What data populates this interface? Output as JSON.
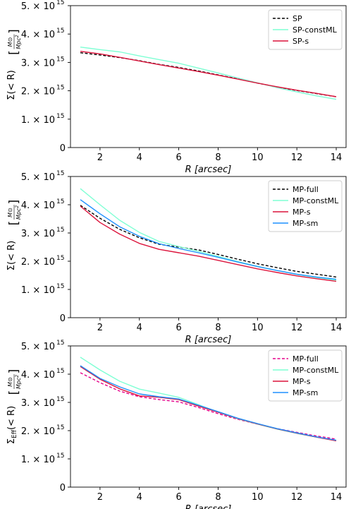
{
  "chart_data": [
    {
      "type": "line",
      "xlabel": "R [arcsec]",
      "ylabel": "Σ(< R) [M⊙ / Mpc²]",
      "ylabel_main": "Σ(< R)",
      "ylabel_unit_num": "M⊙",
      "ylabel_unit_den": "Mpc",
      "xlim": [
        0.5,
        14.5
      ],
      "ylim": [
        0,
        5000000000000000.0
      ],
      "xticks": [
        2,
        4,
        6,
        8,
        10,
        12,
        14
      ],
      "yticks": [
        0,
        1000000000000000.0,
        2000000000000000.0,
        3000000000000000.0,
        4000000000000000.0,
        5000000000000000.0
      ],
      "ytick_labels": [
        "0",
        "1. × 10",
        "2. × 10",
        "3. × 10",
        "4. × 10",
        "5. × 10"
      ],
      "ytick_exp": "15",
      "legend_position": "upper right",
      "x": [
        1,
        2,
        3,
        4,
        5,
        6,
        7,
        8,
        9,
        10,
        11,
        12,
        13,
        14
      ],
      "series": [
        {
          "name": "SP",
          "color": "#000000",
          "dash": "dashed",
          "values": [
            3340000000000000.0,
            3260000000000000.0,
            3170000000000000.0,
            3060000000000000.0,
            2930000000000000.0,
            2820000000000000.0,
            2700000000000000.0,
            2560000000000000.0,
            2420000000000000.0,
            2270000000000000.0,
            2130000000000000.0,
            2010000000000000.0,
            1900000000000000.0,
            1790000000000000.0
          ]
        },
        {
          "name": "SP-constML",
          "color": "#7fffd4",
          "dash": "solid",
          "values": [
            3540000000000000.0,
            3450000000000000.0,
            3370000000000000.0,
            3230000000000000.0,
            3100000000000000.0,
            2970000000000000.0,
            2800000000000000.0,
            2630000000000000.0,
            2450000000000000.0,
            2280000000000000.0,
            2110000000000000.0,
            1960000000000000.0,
            1820000000000000.0,
            1700000000000000.0
          ]
        },
        {
          "name": "SP-s",
          "color": "#dc143c",
          "dash": "solid",
          "values": [
            3390000000000000.0,
            3300000000000000.0,
            3180000000000000.0,
            3050000000000000.0,
            2920000000000000.0,
            2800000000000000.0,
            2680000000000000.0,
            2550000000000000.0,
            2410000000000000.0,
            2270000000000000.0,
            2140000000000000.0,
            2020000000000000.0,
            1910000000000000.0,
            1790000000000000.0
          ]
        }
      ]
    },
    {
      "type": "line",
      "xlabel": "R [arcsec]",
      "ylabel": "Σ(< R) [M⊙ / Mpc²]",
      "ylabel_main": "Σ(< R)",
      "ylabel_unit_num": "M⊙",
      "ylabel_unit_den": "Mpc",
      "xlim": [
        0.5,
        14.5
      ],
      "ylim": [
        0,
        5000000000000000.0
      ],
      "xticks": [
        2,
        4,
        6,
        8,
        10,
        12,
        14
      ],
      "yticks": [
        0,
        1000000000000000.0,
        2000000000000000.0,
        3000000000000000.0,
        4000000000000000.0,
        5000000000000000.0
      ],
      "ytick_labels": [
        "0",
        "1. × 10",
        "2. × 10",
        "3. × 10",
        "4. × 10",
        "5. × 10"
      ],
      "ytick_exp": "15",
      "legend_position": "upper right",
      "x": [
        1,
        2,
        3,
        4,
        5,
        6,
        7,
        8,
        9,
        10,
        11,
        12,
        13,
        14
      ],
      "series": [
        {
          "name": "MP-full",
          "color": "#000000",
          "dash": "dashed",
          "values": [
            3980000000000000.0,
            3520000000000000.0,
            3130000000000000.0,
            2830000000000000.0,
            2600000000000000.0,
            2500000000000000.0,
            2400000000000000.0,
            2240000000000000.0,
            2070000000000000.0,
            1910000000000000.0,
            1770000000000000.0,
            1640000000000000.0,
            1540000000000000.0,
            1440000000000000.0
          ]
        },
        {
          "name": "MP-constML",
          "color": "#7fffd4",
          "dash": "solid",
          "values": [
            4570000000000000.0,
            4000000000000000.0,
            3450000000000000.0,
            3020000000000000.0,
            2700000000000000.0,
            2520000000000000.0,
            2350000000000000.0,
            2170000000000000.0,
            1990000000000000.0,
            1820000000000000.0,
            1670000000000000.0,
            1530000000000000.0,
            1420000000000000.0,
            1330000000000000.0
          ]
        },
        {
          "name": "MP-s",
          "color": "#dc143c",
          "dash": "solid",
          "values": [
            3950000000000000.0,
            3370000000000000.0,
            2960000000000000.0,
            2630000000000000.0,
            2420000000000000.0,
            2300000000000000.0,
            2180000000000000.0,
            2030000000000000.0,
            1880000000000000.0,
            1730000000000000.0,
            1600000000000000.0,
            1480000000000000.0,
            1380000000000000.0,
            1290000000000000.0
          ]
        },
        {
          "name": "MP-sm",
          "color": "#1e90ff",
          "dash": "solid",
          "values": [
            4180000000000000.0,
            3680000000000000.0,
            3220000000000000.0,
            2880000000000000.0,
            2620000000000000.0,
            2450000000000000.0,
            2300000000000000.0,
            2140000000000000.0,
            1970000000000000.0,
            1810000000000000.0,
            1670000000000000.0,
            1540000000000000.0,
            1440000000000000.0,
            1360000000000000.0
          ]
        }
      ]
    },
    {
      "type": "line",
      "xlabel": "R [arcsec]",
      "ylabel": "Σ_Eff(< R) [M⊙ / Mpc²]",
      "ylabel_main": "Σ",
      "ylabel_sub": "Eff",
      "ylabel_after": "(< R)",
      "ylabel_unit_num": "M⊙",
      "ylabel_unit_den": "Mpc",
      "xlim": [
        0.5,
        14.5
      ],
      "ylim": [
        0,
        5000000000000000.0
      ],
      "xticks": [
        2,
        4,
        6,
        8,
        10,
        12,
        14
      ],
      "yticks": [
        0,
        1000000000000000.0,
        2000000000000000.0,
        3000000000000000.0,
        4000000000000000.0,
        5000000000000000.0
      ],
      "ytick_labels": [
        "0",
        "1. × 10",
        "2. × 10",
        "3. × 10",
        "4. × 10",
        "5. × 10"
      ],
      "ytick_exp": "15",
      "legend_position": "upper right",
      "x": [
        1,
        2,
        3,
        4,
        5,
        6,
        7,
        8,
        9,
        10,
        11,
        12,
        13,
        14
      ],
      "series": [
        {
          "name": "MP-full",
          "color": "#e6008a",
          "dash": "dashed",
          "values": [
            4050000000000000.0,
            3700000000000000.0,
            3400000000000000.0,
            3200000000000000.0,
            3100000000000000.0,
            3020000000000000.0,
            2820000000000000.0,
            2600000000000000.0,
            2400000000000000.0,
            2230000000000000.0,
            2070000000000000.0,
            1940000000000000.0,
            1810000000000000.0,
            1700000000000000.0
          ]
        },
        {
          "name": "MP-constML",
          "color": "#7fffd4",
          "dash": "solid",
          "values": [
            4600000000000000.0,
            4150000000000000.0,
            3750000000000000.0,
            3470000000000000.0,
            3330000000000000.0,
            3180000000000000.0,
            2920000000000000.0,
            2650000000000000.0,
            2420000000000000.0,
            2230000000000000.0,
            2050000000000000.0,
            1900000000000000.0,
            1770000000000000.0,
            1650000000000000.0
          ]
        },
        {
          "name": "MP-s",
          "color": "#dc143c",
          "dash": "solid",
          "values": [
            4270000000000000.0,
            3820000000000000.0,
            3480000000000000.0,
            3230000000000000.0,
            3180000000000000.0,
            3100000000000000.0,
            2870000000000000.0,
            2650000000000000.0,
            2430000000000000.0,
            2240000000000000.0,
            2060000000000000.0,
            1910000000000000.0,
            1770000000000000.0,
            1640000000000000.0
          ]
        },
        {
          "name": "MP-sm",
          "color": "#1e90ff",
          "dash": "solid",
          "values": [
            4300000000000000.0,
            3850000000000000.0,
            3550000000000000.0,
            3300000000000000.0,
            3200000000000000.0,
            3120000000000000.0,
            2900000000000000.0,
            2670000000000000.0,
            2440000000000000.0,
            2250000000000000.0,
            2070000000000000.0,
            1920000000000000.0,
            1780000000000000.0,
            1660000000000000.0
          ]
        }
      ]
    }
  ]
}
